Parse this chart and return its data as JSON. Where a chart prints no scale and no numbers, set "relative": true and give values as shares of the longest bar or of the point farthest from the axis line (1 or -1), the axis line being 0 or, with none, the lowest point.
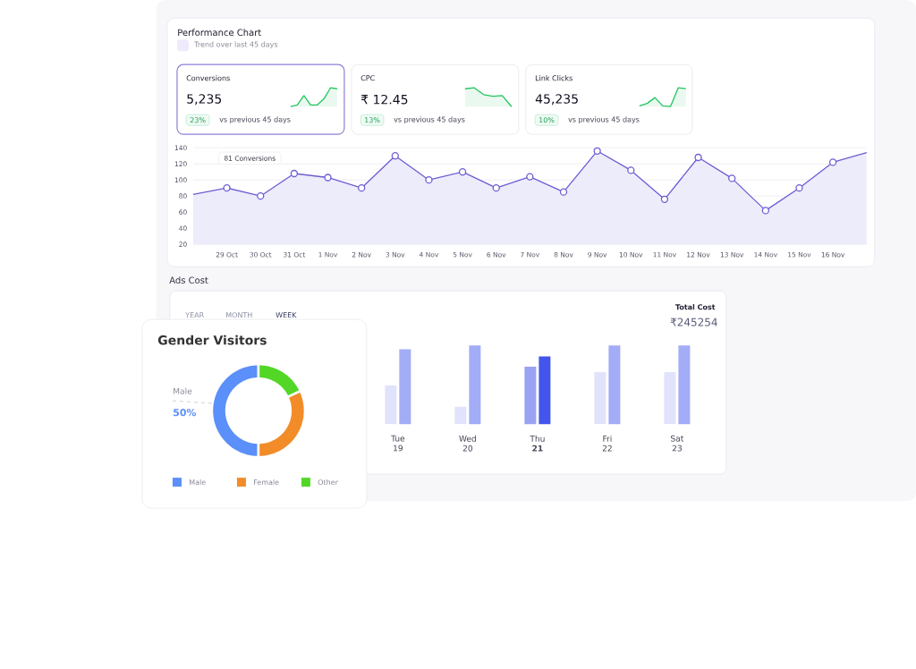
{
  "chart_data": [
    {
      "type": "other",
      "title": "Performance Chart",
      "subtitle": "Trend over last 45 days"
    },
    {
      "type": "other",
      "title": "Conversions",
      "annotations": [
        "5,235",
        "23%",
        "vs previous 45 days"
      ]
    },
    {
      "type": "other",
      "title": "CPC",
      "annotations": [
        "₹ 12.45",
        "13%",
        "vs previous 45 days"
      ]
    },
    {
      "type": "other",
      "title": "Link Clicks",
      "annotations": [
        "45,235",
        "10%",
        "vs previous 45 days"
      ]
    },
    {
      "type": "area",
      "categories": [
        null,
        "29 Oct",
        "30 Oct",
        "31 Oct",
        "1 Nov",
        "2 Nov",
        "3 Nov",
        "4 Nov",
        "5 Nov",
        "6 Nov",
        "7 Nov",
        "8 Nov",
        "9 Nov",
        "10 Nov",
        "11 Nov",
        "12 Nov",
        "13 Nov",
        "14 Nov",
        "15 Nov",
        "16 Nov",
        null
      ],
      "values": [
        82,
        90,
        80,
        108,
        103,
        90,
        130,
        100,
        110,
        90,
        104,
        85,
        136,
        112,
        76,
        128,
        102,
        62,
        90,
        122,
        134
      ],
      "color": "#6c5dd3",
      "ylim": [
        20,
        140
      ],
      "yticks": [
        20,
        40,
        60,
        80,
        100,
        120,
        140
      ],
      "grid": "y",
      "marker": "circle",
      "annotations": [
        "81 Conversions"
      ]
    },
    {
      "type": "other",
      "title": "Ads Cost"
    },
    {
      "type": "bar",
      "categories": [
        "Tue 19",
        "Wed 20",
        "Thu **21**",
        "Fri 22",
        "Sat 23"
      ],
      "relative": true,
      "series": [
        {
          "colors": [
            "#e0e3fb",
            "#e0e3fb",
            "#9aa3f2",
            "#e0e3fb",
            "#e0e3fb"
          ],
          "values": [
            0.49,
            0.22,
            0.73,
            0.66,
            0.66
          ]
        },
        {
          "colors": [
            "#a3acf6",
            "#a3acf6",
            "#4455ec",
            "#a3acf6",
            "#a3acf6"
          ],
          "values": [
            0.95,
            1,
            0.86,
            1,
            1
          ]
        }
      ],
      "annotations": [
        "YEAR",
        "MONTH",
        "WEEK",
        "Total Cost",
        "₹245254"
      ]
    },
    {
      "type": "donut",
      "title": "Gender Visitors",
      "categories": [
        "Male",
        "Female",
        "Other"
      ],
      "values": [
        50,
        32,
        18
      ],
      "colors": [
        "#5b8ff9",
        "#f28c28",
        "#52d726"
      ],
      "value_labels": [
        "50%",
        null,
        null
      ],
      "legend": "bottom",
      "annotations": [
        "Male"
      ]
    }
  ]
}
